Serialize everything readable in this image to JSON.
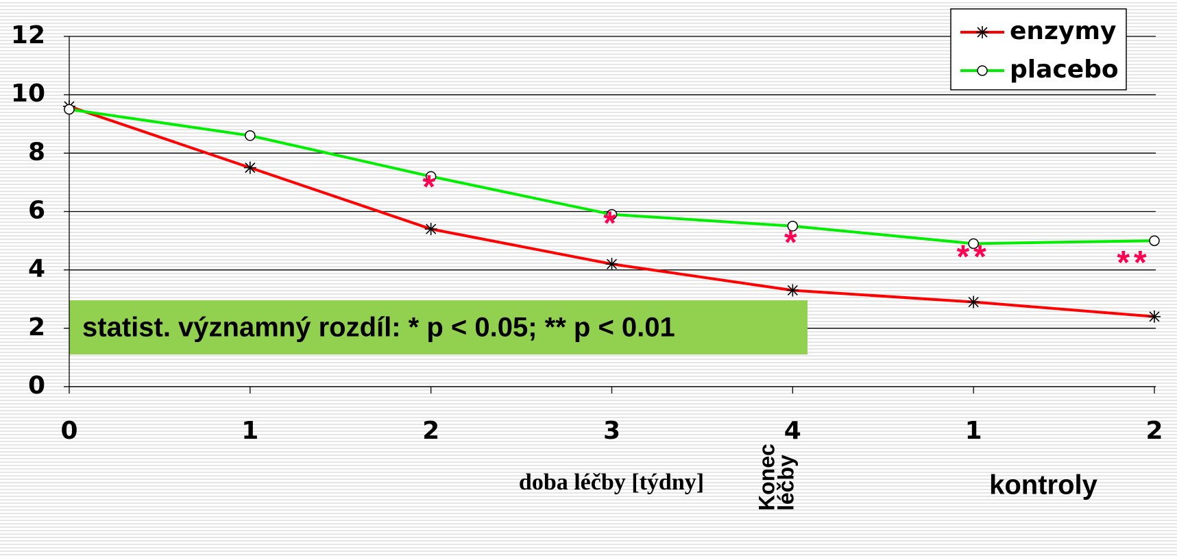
{
  "chart_data": {
    "type": "line",
    "categories": [
      "0",
      "1",
      "2",
      "3",
      "4",
      "1",
      "2"
    ],
    "series": [
      {
        "name": "enzymy",
        "color": "#ff0000",
        "marker": "asterisk",
        "values": [
          9.6,
          7.5,
          5.4,
          4.2,
          3.3,
          2.9,
          2.4
        ]
      },
      {
        "name": "placebo",
        "color": "#00ee00",
        "marker": "circle",
        "values": [
          9.5,
          8.6,
          7.2,
          5.9,
          5.5,
          4.9,
          5.0
        ]
      }
    ],
    "significance": [
      null,
      null,
      "*",
      "*",
      "*",
      "**",
      "**"
    ],
    "note": "statist. významný rozdíl: * p < 0.05; ** p < 0.01",
    "x_label": "doba léčby [týdny]",
    "end_label": [
      "Konec",
      "léčby"
    ],
    "control_label": "kontroly",
    "ylim": [
      0,
      12
    ],
    "yticks": [
      0,
      2,
      4,
      6,
      8,
      10,
      12
    ],
    "grid": true,
    "legend": "upper right"
  }
}
